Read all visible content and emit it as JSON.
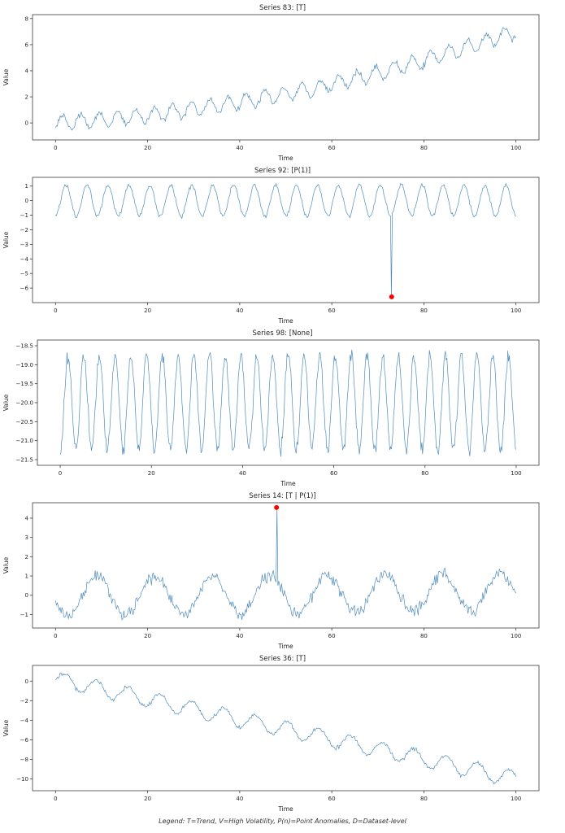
{
  "figure": {
    "caption": "Legend: T=Trend, V=High Volatility, P(n)=Point Anomalies, D=Dataset-level"
  },
  "style": {
    "line_color": "#3d7fb5",
    "anomaly_color": "#ff0000",
    "spine_color": "#3a3a3a",
    "text_color": "#262626",
    "background": "#ffffff"
  },
  "chart_data": [
    {
      "type": "line",
      "title": "Series 83: [T]",
      "xlabel": "Time",
      "ylabel": "Value",
      "xlim": [
        -5,
        105
      ],
      "ylim": [
        -1.3,
        8.3
      ],
      "x_range": [
        0,
        100
      ],
      "xtick_values": [
        0,
        20,
        40,
        60,
        80,
        100
      ],
      "xtick_labels": [
        "0",
        "20",
        "40",
        "60",
        "80",
        "100"
      ],
      "ytick_values": [
        0,
        2,
        4,
        6,
        8
      ],
      "ytick_labels": [
        "0",
        "2",
        "4",
        "6",
        "8"
      ],
      "n_points": 500,
      "signal": {
        "base": 0.0,
        "slope": 0.02,
        "quad": 0.0005,
        "amplitude": 0.55,
        "period": 4.0,
        "phase": -0.785,
        "noise": 0.11,
        "seed": 83
      },
      "anomalies": [],
      "grid": false,
      "legend": "none"
    },
    {
      "type": "line",
      "title": "Series 92: [P(1)]",
      "xlabel": "Time",
      "ylabel": "Value",
      "xlim": [
        -5,
        105
      ],
      "ylim": [
        -7.0,
        1.6
      ],
      "x_range": [
        0,
        100
      ],
      "xtick_values": [
        0,
        20,
        40,
        60,
        80,
        100
      ],
      "xtick_labels": [
        "0",
        "20",
        "40",
        "60",
        "80",
        "100"
      ],
      "ytick_values": [
        1,
        0,
        -1,
        -2,
        -3,
        -4,
        -5,
        -6
      ],
      "ytick_labels": [
        "1",
        "0",
        "−1",
        "−2",
        "−3",
        "−4",
        "−5",
        "−6"
      ],
      "n_points": 500,
      "signal": {
        "base": 0.0,
        "slope": 0,
        "quad": 0,
        "amplitude": 1.05,
        "period": 4.55,
        "phase": -1.57,
        "noise": 0.07,
        "seed": 92
      },
      "anomalies": [
        {
          "x": 73,
          "y": -6.6
        }
      ],
      "grid": false,
      "legend": "none"
    },
    {
      "type": "line",
      "title": "Series 98: [None]",
      "xlabel": "Time",
      "ylabel": "Value",
      "xlim": [
        -5,
        105
      ],
      "ylim": [
        -21.65,
        -18.35
      ],
      "x_range": [
        0,
        100
      ],
      "xtick_values": [
        0,
        20,
        40,
        60,
        80,
        100
      ],
      "xtick_labels": [
        "0",
        "20",
        "40",
        "60",
        "80",
        "100"
      ],
      "ytick_values": [
        -18.5,
        -19.0,
        -19.5,
        -20.0,
        -20.5,
        -21.0,
        -21.5
      ],
      "ytick_labels": [
        "−18.5",
        "−19.0",
        "−19.5",
        "−20.0",
        "−20.5",
        "−21.0",
        "−21.5"
      ],
      "n_points": 600,
      "signal": {
        "base": -20.0,
        "slope": 0,
        "quad": 0,
        "amplitude": 1.25,
        "period": 3.45,
        "phase": -1.57,
        "noise": 0.09,
        "seed": 98
      },
      "anomalies": [],
      "grid": false,
      "legend": "none"
    },
    {
      "type": "line",
      "title": "Series 14: [T | P(1)]",
      "xlabel": "Time",
      "ylabel": "Value",
      "xlim": [
        -5,
        105
      ],
      "ylim": [
        -1.7,
        4.8
      ],
      "x_range": [
        0,
        100
      ],
      "xtick_values": [
        0,
        20,
        40,
        60,
        80,
        100
      ],
      "xtick_labels": [
        "0",
        "20",
        "40",
        "60",
        "80",
        "100"
      ],
      "ytick_values": [
        -1,
        0,
        1,
        2,
        3,
        4
      ],
      "ytick_labels": [
        "−1",
        "0",
        "1",
        "2",
        "3",
        "4"
      ],
      "n_points": 500,
      "signal": {
        "base": -0.05,
        "slope": 0.002,
        "quad": 0,
        "amplitude": 1.0,
        "period": 12.5,
        "phase": -2.95,
        "noise": 0.16,
        "seed": 14
      },
      "anomalies": [
        {
          "x": 48,
          "y": 4.55
        }
      ],
      "grid": false,
      "legend": "none"
    },
    {
      "type": "line",
      "title": "Series 36: [T]",
      "xlabel": "Time",
      "ylabel": "Value",
      "xlim": [
        -5,
        105
      ],
      "ylim": [
        -11.2,
        1.6
      ],
      "x_range": [
        0,
        100
      ],
      "xtick_values": [
        0,
        20,
        40,
        60,
        80,
        100
      ],
      "xtick_labels": [
        "0",
        "20",
        "40",
        "60",
        "80",
        "100"
      ],
      "ytick_values": [
        0,
        -2,
        -4,
        -6,
        -8,
        -10
      ],
      "ytick_labels": [
        "0",
        "−2",
        "−4",
        "−6",
        "−8",
        "−10"
      ],
      "n_points": 500,
      "signal": {
        "base": 0.2,
        "slope": -0.102,
        "quad": 0,
        "amplitude": 0.8,
        "period": 6.9,
        "phase": -0.25,
        "noise": 0.1,
        "seed": 36
      },
      "anomalies": [],
      "grid": false,
      "legend": "none"
    }
  ]
}
